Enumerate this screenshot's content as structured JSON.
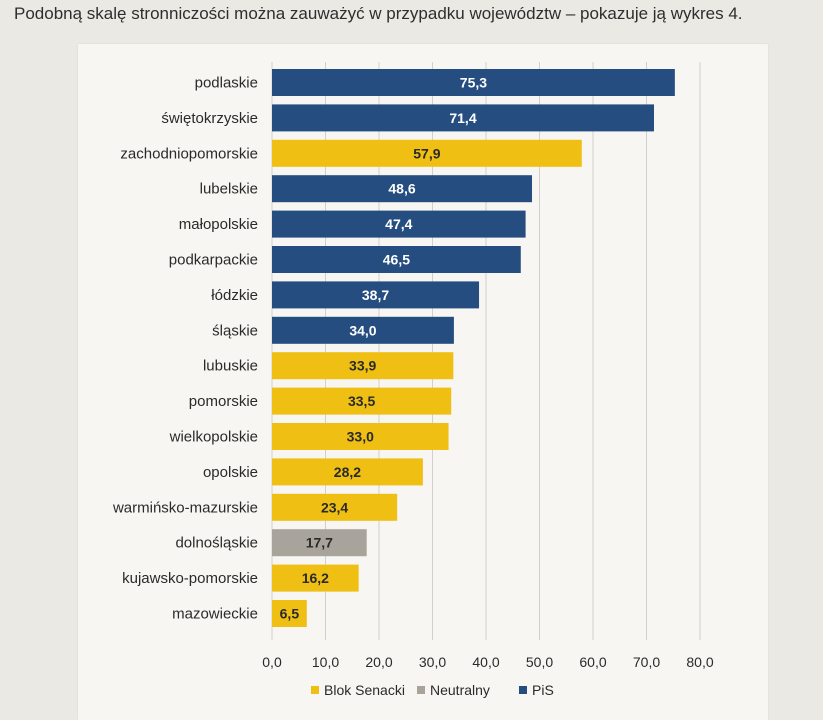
{
  "header": {
    "intro_text": "Podobną skalę stronniczości można zauważyć w przypadku województw – pokazuje ją wykres 4."
  },
  "colors": {
    "Blok Senacki": "#f0bf13",
    "Neutralny": "#a9a49b",
    "PiS": "#264d80"
  },
  "chart_data": {
    "type": "bar",
    "orientation": "horizontal",
    "categories": [
      "podlaskie",
      "świętokrzyskie",
      "zachodniopomorskie",
      "lubelskie",
      "małopolskie",
      "podkarpackie",
      "łódzkie",
      "śląskie",
      "lubuskie",
      "pomorskie",
      "wielkopolskie",
      "opolskie",
      "warmińsko-mazurskie",
      "dolnośląskie",
      "kujawsko-pomorskie",
      "mazowieckie"
    ],
    "values": [
      75.3,
      71.4,
      57.9,
      48.6,
      47.4,
      46.5,
      38.7,
      34.0,
      33.9,
      33.5,
      33.0,
      28.2,
      23.4,
      17.7,
      16.2,
      6.5
    ],
    "value_labels": [
      "75,3",
      "71,4",
      "57,9",
      "48,6",
      "47,4",
      "46,5",
      "38,7",
      "34,0",
      "33,9",
      "33,5",
      "33,0",
      "28,2",
      "23,4",
      "17,7",
      "16,2",
      "6,5"
    ],
    "bar_groups": [
      "PiS",
      "PiS",
      "Blok Senacki",
      "PiS",
      "PiS",
      "PiS",
      "PiS",
      "PiS",
      "Blok Senacki",
      "Blok Senacki",
      "Blok Senacki",
      "Blok Senacki",
      "Blok Senacki",
      "Neutralny",
      "Blok Senacki",
      "Blok Senacki"
    ],
    "xlim": [
      0,
      80
    ],
    "x_ticks": [
      "0,0",
      "10,0",
      "20,0",
      "30,0",
      "40,0",
      "50,0",
      "60,0",
      "70,0",
      "80,0"
    ],
    "grid": "vertical",
    "legend": {
      "position": "bottom",
      "entries": [
        "Blok Senacki",
        "Neutralny",
        "PiS"
      ]
    }
  }
}
